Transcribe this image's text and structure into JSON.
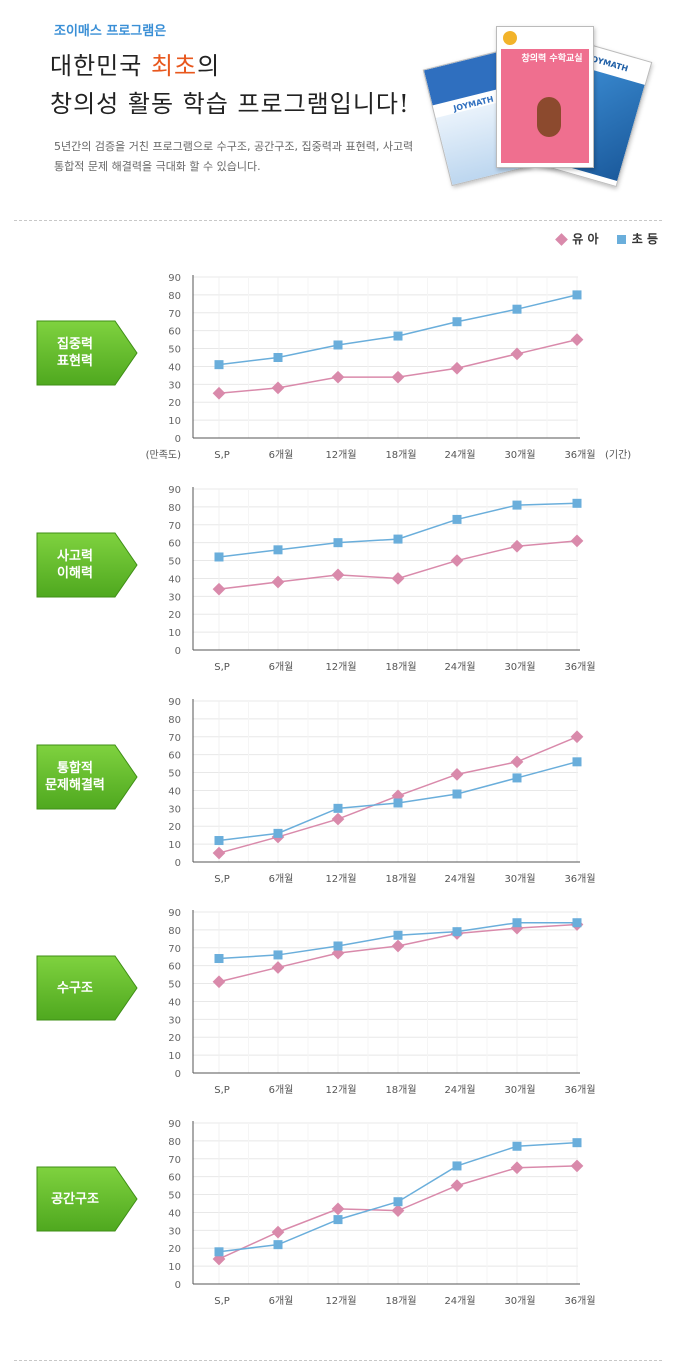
{
  "header": {
    "subtitle": "조이매스 프로그램은",
    "title_line1_pre": "대한민국 ",
    "title_line1_highlight": "최초",
    "title_line1_post": "의",
    "title_line2": "창의성 활동 학습 프로그램입니다!",
    "desc_line1": "5년간의 검증을 거친 프로그램으로 수구조, 공간구조, 집중력과 표현력, 사고력",
    "desc_line2": "통합적 문제 해결력을 극대화 할 수 있습니다.",
    "book_covers": [
      "JOYMATH",
      "창의력 수학교실",
      "JOYMATH"
    ]
  },
  "legend": {
    "series1": "유 아",
    "series2": "초 등"
  },
  "colors": {
    "series1": "#d98aab",
    "series2": "#6aaedb",
    "badge": "#5cb82a",
    "grid": "#e8e8e8"
  },
  "axis": {
    "y_ticks": [
      "0",
      "10",
      "20",
      "30",
      "40",
      "50",
      "60",
      "70",
      "80",
      "90"
    ],
    "x_ticks": [
      "S,P",
      "6개월",
      "12개월",
      "18개월",
      "24개월",
      "30개월",
      "36개월"
    ],
    "y_unit": "(만족도)",
    "x_unit": "(기간)"
  },
  "chart_data": [
    {
      "type": "line",
      "badge": [
        "집중력",
        "표현력"
      ],
      "categories": [
        "S,P",
        "6개월",
        "12개월",
        "18개월",
        "24개월",
        "30개월",
        "36개월"
      ],
      "ylim": [
        0,
        90
      ],
      "series": [
        {
          "name": "유 아",
          "values": [
            25,
            28,
            34,
            34,
            39,
            47,
            55
          ]
        },
        {
          "name": "초 등",
          "values": [
            41,
            45,
            52,
            57,
            65,
            72,
            80
          ]
        }
      ]
    },
    {
      "type": "line",
      "badge": [
        "사고력",
        "이해력"
      ],
      "categories": [
        "S,P",
        "6개월",
        "12개월",
        "18개월",
        "24개월",
        "30개월",
        "36개월"
      ],
      "ylim": [
        0,
        90
      ],
      "series": [
        {
          "name": "유 아",
          "values": [
            34,
            38,
            42,
            40,
            50,
            58,
            61
          ]
        },
        {
          "name": "초 등",
          "values": [
            52,
            56,
            60,
            62,
            73,
            81,
            82
          ]
        }
      ]
    },
    {
      "type": "line",
      "badge": [
        "통합적",
        "문제해결력"
      ],
      "categories": [
        "S,P",
        "6개월",
        "12개월",
        "18개월",
        "24개월",
        "30개월",
        "36개월"
      ],
      "ylim": [
        0,
        90
      ],
      "series": [
        {
          "name": "유 아",
          "values": [
            5,
            14,
            24,
            37,
            49,
            56,
            70
          ]
        },
        {
          "name": "초 등",
          "values": [
            12,
            16,
            30,
            33,
            38,
            47,
            56
          ]
        }
      ]
    },
    {
      "type": "line",
      "badge": [
        "수구조"
      ],
      "categories": [
        "S,P",
        "6개월",
        "12개월",
        "18개월",
        "24개월",
        "30개월",
        "36개월"
      ],
      "ylim": [
        0,
        90
      ],
      "series": [
        {
          "name": "유 아",
          "values": [
            51,
            59,
            67,
            71,
            78,
            81,
            83
          ]
        },
        {
          "name": "초 등",
          "values": [
            64,
            66,
            71,
            77,
            79,
            84,
            84
          ]
        }
      ]
    },
    {
      "type": "line",
      "badge": [
        "공간구조"
      ],
      "categories": [
        "S,P",
        "6개월",
        "12개월",
        "18개월",
        "24개월",
        "30개월",
        "36개월"
      ],
      "ylim": [
        0,
        90
      ],
      "series": [
        {
          "name": "유 아",
          "values": [
            14,
            29,
            42,
            41,
            55,
            65,
            66
          ]
        },
        {
          "name": "초 등",
          "values": [
            18,
            22,
            36,
            46,
            66,
            77,
            79
          ]
        }
      ]
    }
  ]
}
